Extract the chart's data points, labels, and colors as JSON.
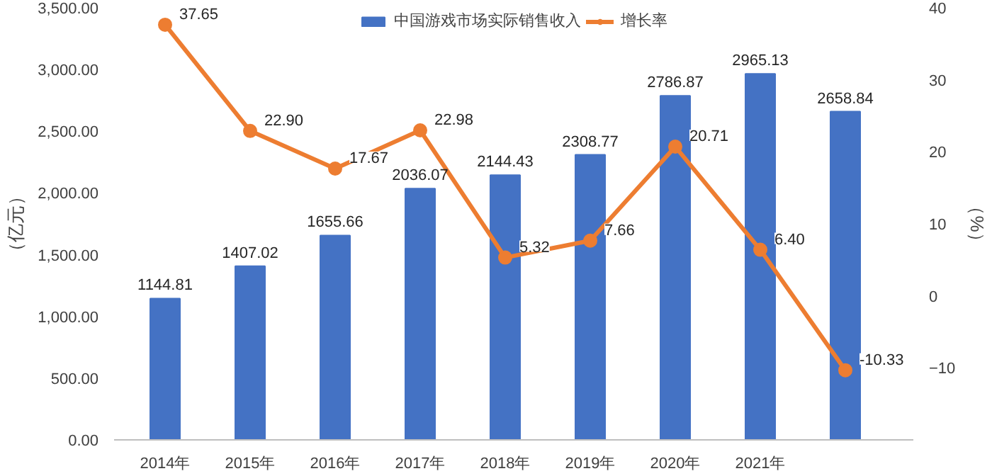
{
  "chart_data": {
    "type": "bar",
    "categories": [
      "2014年",
      "2015年",
      "2016年",
      "2017年",
      "2018年",
      "2019年",
      "2020年",
      "2021年",
      null
    ],
    "series": [
      {
        "name": "中国游戏市场实际销售收入",
        "color": "#4472c4",
        "values": [
          1144.81,
          1407.02,
          1655.66,
          2036.07,
          2144.43,
          2308.77,
          2786.87,
          2965.13,
          2658.84
        ],
        "value_labels": [
          "1144.81",
          "1407.02",
          "1655.66",
          "2036.07",
          "2144.43",
          "2308.77",
          "2786.87",
          "2965.13",
          "2658.84"
        ]
      },
      {
        "name": "增长率",
        "type": "line",
        "axis": "y2",
        "color": "#ed7d31",
        "marker": "circle",
        "values": [
          37.65,
          22.9,
          17.67,
          22.98,
          5.32,
          7.66,
          20.71,
          6.4,
          -10.33
        ],
        "value_labels": [
          "37.65",
          "22.90",
          "17.67",
          "22.98",
          "5.32",
          "7.66",
          "20.71",
          "6.40",
          "-10.33"
        ]
      }
    ],
    "ylabel": "（亿元）",
    "y2label": "（%）",
    "ylim": [
      0,
      3500
    ],
    "yticks": [
      {
        "value": 0,
        "label": "0.00"
      },
      {
        "value": 500,
        "label": "500.00"
      },
      {
        "value": 1000,
        "label": "1,000.00"
      },
      {
        "value": 1500,
        "label": "1,500.00"
      },
      {
        "value": 2000,
        "label": "2,000.00"
      },
      {
        "value": 2500,
        "label": "2,500.00"
      },
      {
        "value": 3000,
        "label": "3,000.00"
      },
      {
        "value": 3500,
        "label": "3,500.00"
      }
    ],
    "y2lim": [
      -20,
      40
    ],
    "y2ticks": [
      -10,
      0,
      10,
      20,
      30,
      40
    ],
    "grid": false,
    "legend": "top"
  }
}
